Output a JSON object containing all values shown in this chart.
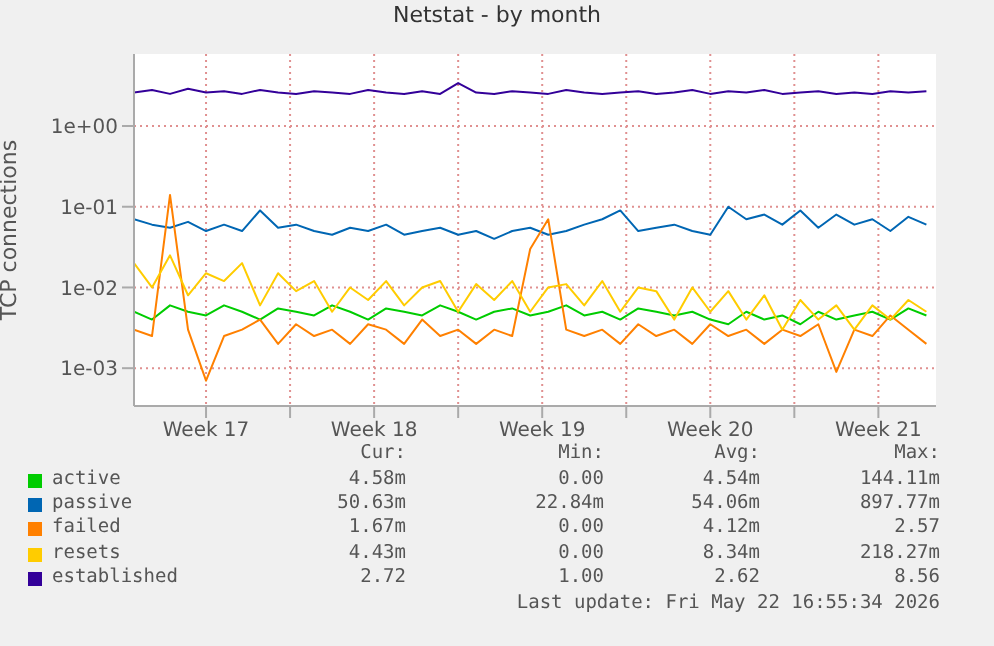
{
  "chart_data": {
    "type": "line",
    "title": "Netstat - by month",
    "ylabel": "TCP connections",
    "x": [
      "2026-04-20T12:00",
      "2026-04-21T06:00",
      "2026-04-22T00:00",
      "2026-04-22T18:00",
      "2026-04-23T12:00",
      "2026-04-24T06:00",
      "2026-04-25T00:00",
      "2026-04-25T18:00",
      "2026-04-26T12:00",
      "2026-04-27T06:00",
      "2026-04-28T00:00",
      "2026-04-28T18:00",
      "2026-04-29T12:00",
      "2026-04-30T06:00",
      "2026-05-01T00:00",
      "2026-05-01T18:00",
      "2026-05-02T12:00",
      "2026-05-03T06:00",
      "2026-05-04T00:00",
      "2026-05-04T18:00",
      "2026-05-05T12:00",
      "2026-05-06T06:00",
      "2026-05-07T00:00",
      "2026-05-07T18:00",
      "2026-05-08T12:00",
      "2026-05-09T06:00",
      "2026-05-10T00:00",
      "2026-05-10T18:00",
      "2026-05-11T12:00",
      "2026-05-12T06:00",
      "2026-05-13T00:00",
      "2026-05-13T18:00",
      "2026-05-14T12:00",
      "2026-05-15T06:00",
      "2026-05-16T00:00",
      "2026-05-16T18:00",
      "2026-05-17T12:00",
      "2026-05-18T06:00",
      "2026-05-19T00:00",
      "2026-05-19T18:00",
      "2026-05-20T12:00",
      "2026-05-21T06:00",
      "2026-05-22T00:00",
      "2026-05-22T18:00",
      "2026-05-23T12:00"
    ],
    "xlim": [
      "2026-04-20T12:00",
      "2026-05-23T21:36"
    ],
    "xticks": [
      {
        "value": "2026-04-23T12:00",
        "label": "Week 17"
      },
      {
        "value": "2026-04-27T00:00",
        "label": null
      },
      {
        "value": "2026-04-30T12:00",
        "label": "Week 18"
      },
      {
        "value": "2026-05-04T00:00",
        "label": null
      },
      {
        "value": "2026-05-07T12:00",
        "label": "Week 19"
      },
      {
        "value": "2026-05-11T00:00",
        "label": null
      },
      {
        "value": "2026-05-14T12:00",
        "label": "Week 20"
      },
      {
        "value": "2026-05-18T00:00",
        "label": null
      },
      {
        "value": "2026-05-21T12:00",
        "label": "Week 21"
      }
    ],
    "log": "y",
    "ylim": [
      0.00034,
      7.8
    ],
    "yticks": [
      {
        "value": 0.001,
        "label": "1e-03"
      },
      {
        "value": 0.01,
        "label": "1e-02"
      },
      {
        "value": 0.1,
        "label": "1e-01"
      },
      {
        "value": 1,
        "label": "1e+00"
      }
    ],
    "grid": true,
    "legend": "bottom",
    "marker": "none",
    "line_style": "solid",
    "series": [
      {
        "name": "active",
        "color": "#00cc00",
        "values": [
          0.005,
          0.004,
          0.006,
          0.005,
          0.0045,
          0.006,
          0.005,
          0.004,
          0.0055,
          0.005,
          0.0045,
          0.006,
          0.005,
          0.004,
          0.0055,
          0.005,
          0.0045,
          0.006,
          0.005,
          0.004,
          0.005,
          0.0055,
          0.0045,
          0.005,
          0.006,
          0.0045,
          0.005,
          0.004,
          0.0055,
          0.005,
          0.0045,
          0.005,
          0.004,
          0.0035,
          0.005,
          0.004,
          0.0045,
          0.0035,
          0.005,
          0.004,
          0.0045,
          0.005,
          0.004,
          0.0055,
          0.0045
        ]
      },
      {
        "name": "passive",
        "color": "#0066b3",
        "values": [
          0.07,
          0.06,
          0.055,
          0.065,
          0.05,
          0.06,
          0.05,
          0.09,
          0.055,
          0.06,
          0.05,
          0.045,
          0.055,
          0.05,
          0.06,
          0.045,
          0.05,
          0.055,
          0.045,
          0.05,
          0.04,
          0.05,
          0.055,
          0.045,
          0.05,
          0.06,
          0.07,
          0.09,
          0.05,
          0.055,
          0.06,
          0.05,
          0.045,
          0.1,
          0.07,
          0.08,
          0.06,
          0.09,
          0.055,
          0.08,
          0.06,
          0.07,
          0.05,
          0.075,
          0.06
        ]
      },
      {
        "name": "failed",
        "color": "#ff8000",
        "values": [
          0.003,
          0.0025,
          0.14,
          0.003,
          0.0007,
          0.0025,
          0.003,
          0.004,
          0.002,
          0.0035,
          0.0025,
          0.003,
          0.002,
          0.0035,
          0.003,
          0.002,
          0.004,
          0.0025,
          0.003,
          0.002,
          0.003,
          0.0025,
          0.03,
          0.07,
          0.003,
          0.0025,
          0.003,
          0.002,
          0.0035,
          0.0025,
          0.003,
          0.002,
          0.0035,
          0.0025,
          0.003,
          0.002,
          0.003,
          0.0025,
          0.0035,
          0.0009,
          0.003,
          0.0025,
          0.0045,
          0.003,
          0.002
        ]
      },
      {
        "name": "resets",
        "color": "#ffcc00",
        "values": [
          0.02,
          0.01,
          0.025,
          0.008,
          0.015,
          0.012,
          0.02,
          0.006,
          0.015,
          0.009,
          0.012,
          0.005,
          0.01,
          0.007,
          0.012,
          0.006,
          0.01,
          0.012,
          0.005,
          0.011,
          0.007,
          0.012,
          0.005,
          0.01,
          0.011,
          0.006,
          0.012,
          0.005,
          0.01,
          0.009,
          0.004,
          0.01,
          0.005,
          0.009,
          0.004,
          0.008,
          0.003,
          0.007,
          0.004,
          0.006,
          0.003,
          0.006,
          0.004,
          0.007,
          0.005
        ]
      },
      {
        "name": "established",
        "color": "#330099",
        "values": [
          2.6,
          2.8,
          2.5,
          2.9,
          2.6,
          2.7,
          2.5,
          2.8,
          2.6,
          2.5,
          2.7,
          2.6,
          2.5,
          2.8,
          2.6,
          2.5,
          2.7,
          2.5,
          3.4,
          2.6,
          2.5,
          2.7,
          2.6,
          2.5,
          2.8,
          2.6,
          2.5,
          2.6,
          2.7,
          2.5,
          2.6,
          2.8,
          2.5,
          2.7,
          2.6,
          2.8,
          2.5,
          2.6,
          2.7,
          2.5,
          2.6,
          2.5,
          2.7,
          2.6,
          2.7
        ]
      }
    ],
    "annotations": [
      "Cur:",
      "Min:",
      "Avg:",
      "Max:",
      "4.58m",
      "0.00",
      "4.54m",
      "144.11m",
      "50.63m",
      "22.84m",
      "54.06m",
      "897.77m",
      "1.67m",
      "0.00",
      "4.12m",
      "2.57",
      "4.43m",
      "0.00",
      "8.34m",
      "218.27m",
      "2.72",
      "1.00",
      "2.62",
      "8.56",
      "Last update: Fri May 22 16:55:34 2026"
    ]
  }
}
